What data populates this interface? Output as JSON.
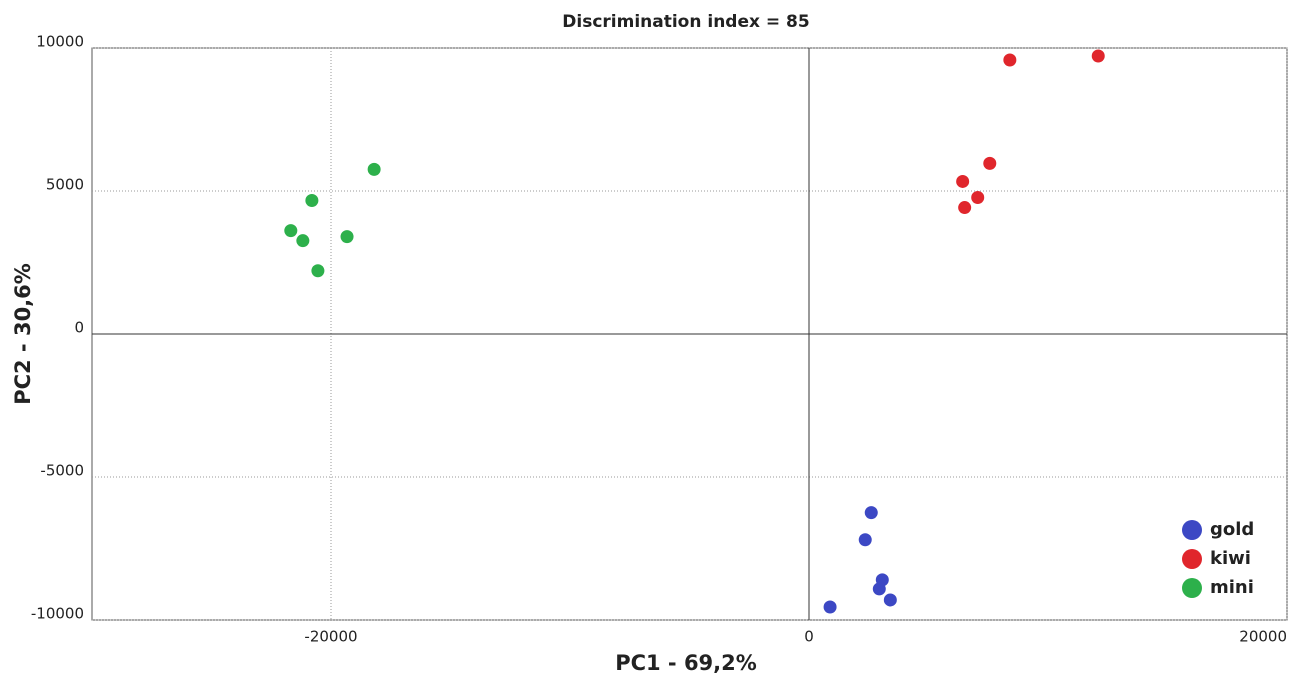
{
  "chart_data": {
    "type": "scatter",
    "title": "Discrimination index = 85",
    "x_label": "PC1 - 69,2%",
    "y_label": "PC2 - 30,6%",
    "xlim": [
      -30000,
      20000
    ],
    "ylim": [
      -10000,
      10000
    ],
    "xticks": [
      -20000,
      0,
      20000
    ],
    "yticks": [
      -10000,
      -5000,
      0,
      5000,
      10000
    ],
    "grid": true,
    "legend": "lower right",
    "series": [
      {
        "name": "gold",
        "color": "#3c48c4",
        "x": [
          2605,
          2353,
          3067,
          2941,
          3403,
          882
        ],
        "y": [
          -6246,
          -7193,
          -8597,
          -8913,
          -9299,
          -9545
        ]
      },
      {
        "name": "kiwi",
        "color": "#e0262c",
        "x": [
          8404,
          12102,
          7564,
          6429,
          7059,
          6513
        ],
        "y": [
          9580,
          9720,
          5965,
          5334,
          4772,
          4421
        ]
      },
      {
        "name": "mini",
        "color": "#2db04b",
        "x": [
          -18195,
          -20800,
          -21682,
          -21178,
          -19329,
          -20548
        ],
        "y": [
          5755,
          4667,
          3614,
          3263,
          3404,
          2211
        ]
      }
    ]
  }
}
